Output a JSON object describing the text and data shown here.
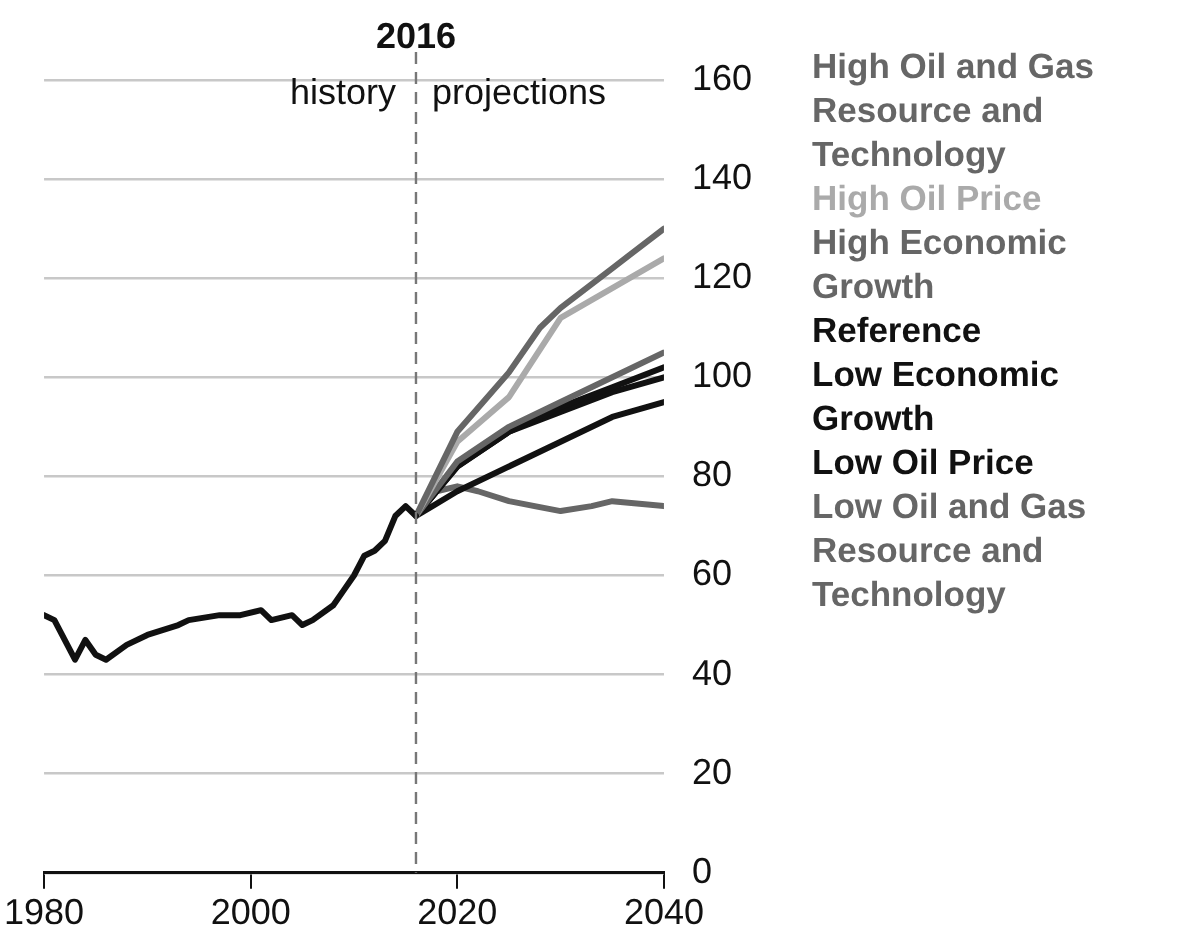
{
  "chart_data": {
    "type": "line",
    "x": [
      1980,
      1981,
      1983,
      1984,
      1985,
      1986,
      1988,
      1990,
      1993,
      1994,
      1997,
      1999,
      2001,
      2002,
      2004,
      2005,
      2006,
      2008,
      2009,
      2010,
      2011,
      2012,
      2013,
      2014,
      2015,
      2016
    ],
    "series": [
      {
        "color": "#111111",
        "values": [
          52,
          51,
          43,
          47,
          44,
          43,
          46,
          48,
          50,
          51,
          52,
          52,
          53,
          51,
          52,
          50,
          51,
          54,
          57,
          60,
          64,
          65,
          67,
          72,
          74,
          72
        ]
      },
      {
        "name": "High Oil and Gas Resource and Technology",
        "color": "#666666",
        "x": [
          2016,
          2020,
          2025,
          2028,
          2030,
          2035,
          2040
        ],
        "values": [
          72,
          89,
          101,
          110,
          114,
          122,
          130
        ]
      },
      {
        "name": "High Oil Price",
        "color": "#aaaaaa",
        "x": [
          2016,
          2020,
          2025,
          2030,
          2035,
          2040
        ],
        "values": [
          72,
          87,
          96,
          112,
          118,
          124
        ]
      },
      {
        "name": "High Economic Growth",
        "color": "#666666",
        "x": [
          2016,
          2020,
          2025,
          2030,
          2035,
          2040
        ],
        "values": [
          72,
          83,
          90,
          95,
          100,
          105
        ]
      },
      {
        "name": "Reference",
        "color": "#111111",
        "x": [
          2016,
          2020,
          2025,
          2030,
          2035,
          2040
        ],
        "values": [
          72,
          82,
          89,
          94,
          98,
          102
        ]
      },
      {
        "name": "Low Economic Growth",
        "color": "#111111",
        "x": [
          2016,
          2020,
          2025,
          2030,
          2035,
          2040
        ],
        "values": [
          72,
          82,
          89,
          93,
          97,
          100
        ]
      },
      {
        "name": "Low Oil Price",
        "color": "#111111",
        "x": [
          2016,
          2020,
          2025,
          2030,
          2035,
          2040
        ],
        "values": [
          72,
          77,
          82,
          87,
          92,
          95
        ]
      },
      {
        "name": "Low Oil and Gas Resource and Technology",
        "color": "#666666",
        "x": [
          2016,
          2018,
          2020,
          2022,
          2025,
          2030,
          2033,
          2035,
          2040
        ],
        "values": [
          72,
          77,
          78,
          77,
          75,
          73,
          74,
          75,
          74
        ]
      }
    ],
    "xlim": [
      1980,
      2040
    ],
    "xticks": [
      1980,
      2000,
      2020,
      2040
    ],
    "ylim": [
      0,
      160
    ],
    "yticks": [
      0,
      20,
      40,
      60,
      80,
      100,
      120,
      140,
      160
    ],
    "grid": "y",
    "legend": "right",
    "marker": "none",
    "line_style": "solid",
    "ref_lines": [
      {
        "axis": "x",
        "value": 2016,
        "label": "2016",
        "color": "#777777",
        "line_style": "dashed"
      }
    ],
    "annotations": [
      "history",
      "projections"
    ]
  }
}
